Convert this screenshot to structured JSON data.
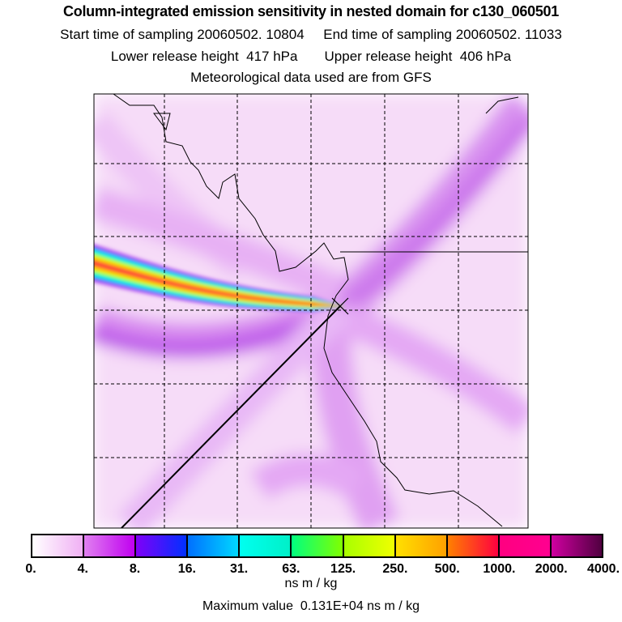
{
  "header": {
    "title": "Column-integrated emission sensitivity in nested domain for c130_060501",
    "sampling": "Start time of sampling 20060502. 10804     End time of sampling 20060502. 11033",
    "release": "Lower release height  417 hPa       Upper release height  406 hPa",
    "met": "Meteorological data used are from GFS"
  },
  "colorbar": {
    "labels": [
      "0.",
      "4.",
      "8.",
      "16.",
      "31.",
      "63.",
      "125.",
      "250.",
      "500.",
      "1000.",
      "2000.",
      "4000."
    ],
    "colors": [
      [
        "#ffffff",
        "#f0b0f4"
      ],
      [
        "#e080f0",
        "#c000f0"
      ],
      [
        "#8000f8",
        "#0030ff"
      ],
      [
        "#0070ff",
        "#00d8ff"
      ],
      [
        "#00fff0",
        "#00f0c8"
      ],
      [
        "#00ff80",
        "#80ff00"
      ],
      [
        "#a8ff00",
        "#f0ff00"
      ],
      [
        "#ffe000",
        "#ffa000"
      ],
      [
        "#ff8000",
        "#ff0040"
      ],
      [
        "#ff0080",
        "#ff0090"
      ],
      [
        "#d000a0",
        "#500040"
      ]
    ],
    "unit": "ns m / kg"
  },
  "footer": {
    "max_value": "Maximum value  0.131E+04 ns m / kg"
  }
}
